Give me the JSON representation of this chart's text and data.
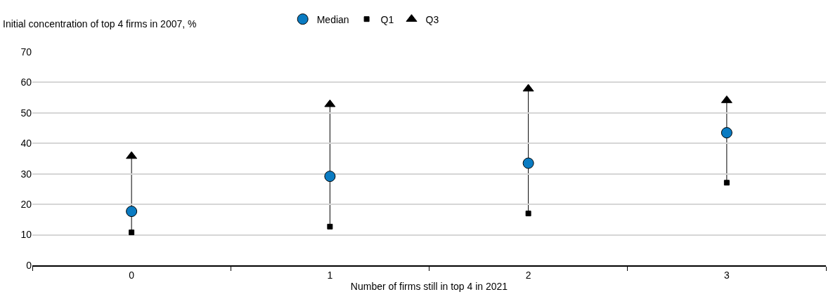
{
  "chart_data": {
    "type": "scatter",
    "ylabel": "Initial concentration of top 4 firms in 2007, %",
    "xlabel": "Number of firms still in top 4 in 2021",
    "categories": [
      "0",
      "1",
      "2",
      "3"
    ],
    "series": [
      {
        "name": "Median",
        "color": "#0a7bc2",
        "marker": "circle",
        "values": [
          17.7,
          29.2,
          33.5,
          43.5
        ]
      },
      {
        "name": "Q1",
        "color": "#000000",
        "marker": "square",
        "values": [
          10.8,
          12.7,
          17.0,
          27.1
        ]
      },
      {
        "name": "Q3",
        "color": "#000000",
        "marker": "triangle",
        "values": [
          35.8,
          52.8,
          57.9,
          54.1
        ]
      }
    ],
    "ylim": [
      0,
      70
    ],
    "yticks": [
      0,
      10,
      20,
      30,
      40,
      50,
      60,
      70
    ],
    "grid": "y",
    "legend": "top"
  }
}
